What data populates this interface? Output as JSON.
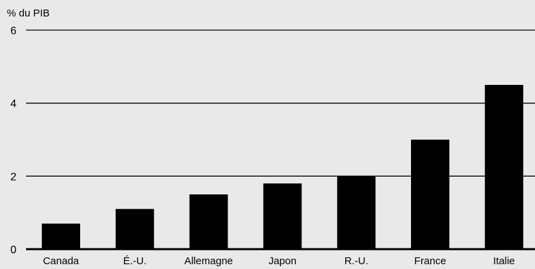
{
  "chart_data": {
    "type": "bar",
    "ylabel": "% du PIB",
    "categories": [
      "Canada",
      "É.-U.",
      "Allemagne",
      "Japon",
      "R.-U.",
      "France",
      "Italie"
    ],
    "values": [
      0.7,
      1.1,
      1.5,
      1.8,
      2.0,
      3.0,
      4.5
    ],
    "ylim": [
      0,
      6
    ],
    "yticks": [
      0,
      2,
      4,
      6
    ],
    "grid": true,
    "colors": {
      "bar": "#000000",
      "background": "#e9e9e9",
      "grid": "#000000"
    }
  }
}
